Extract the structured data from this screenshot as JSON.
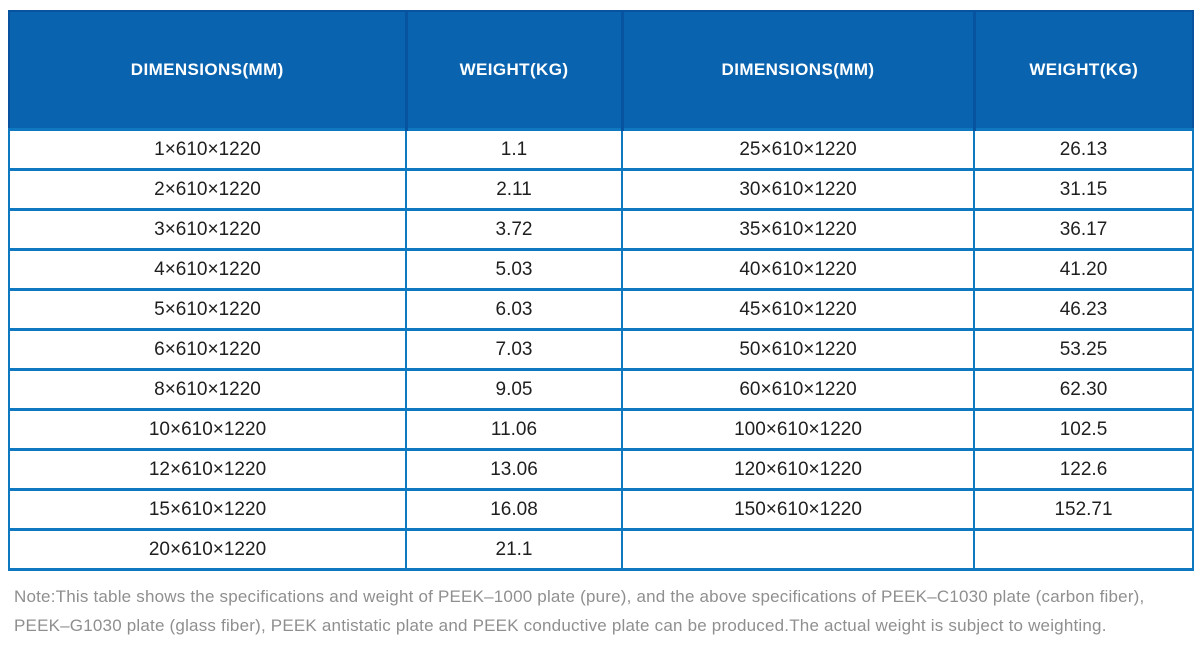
{
  "colors": {
    "header_bg": "#0a63ae",
    "header_divider": "#0853a0",
    "grid_border": "#0e79c1",
    "header_text": "#ffffff",
    "body_text": "#1f1f1f",
    "note_text": "#8f8f8f"
  },
  "table": {
    "headers": [
      "DIMENSIONS(MM)",
      "WEIGHT(KG)",
      "DIMENSIONS(MM)",
      "WEIGHT(KG)"
    ],
    "rows": [
      [
        "1×610×1220",
        "1.1",
        "25×610×1220",
        "26.13"
      ],
      [
        "2×610×1220",
        "2.11",
        "30×610×1220",
        "31.15"
      ],
      [
        "3×610×1220",
        "3.72",
        "35×610×1220",
        "36.17"
      ],
      [
        "4×610×1220",
        "5.03",
        "40×610×1220",
        "41.20"
      ],
      [
        "5×610×1220",
        "6.03",
        "45×610×1220",
        "46.23"
      ],
      [
        "6×610×1220",
        "7.03",
        "50×610×1220",
        "53.25"
      ],
      [
        "8×610×1220",
        "9.05",
        "60×610×1220",
        "62.30"
      ],
      [
        "10×610×1220",
        "11.06",
        "100×610×1220",
        "102.5"
      ],
      [
        "12×610×1220",
        "13.06",
        "120×610×1220",
        "122.6"
      ],
      [
        "15×610×1220",
        "16.08",
        "150×610×1220",
        "152.71"
      ],
      [
        "20×610×1220",
        "21.1",
        "",
        ""
      ]
    ]
  },
  "note": {
    "line1": "Note:This table shows the specifications and weight of PEEK–1000 plate (pure), and the above specifications of PEEK–C1030 plate (carbon fiber),",
    "line2": "PEEK–G1030 plate (glass fiber), PEEK antistatic plate and PEEK conductive plate can be produced.The actual weight is subject to weighting."
  }
}
